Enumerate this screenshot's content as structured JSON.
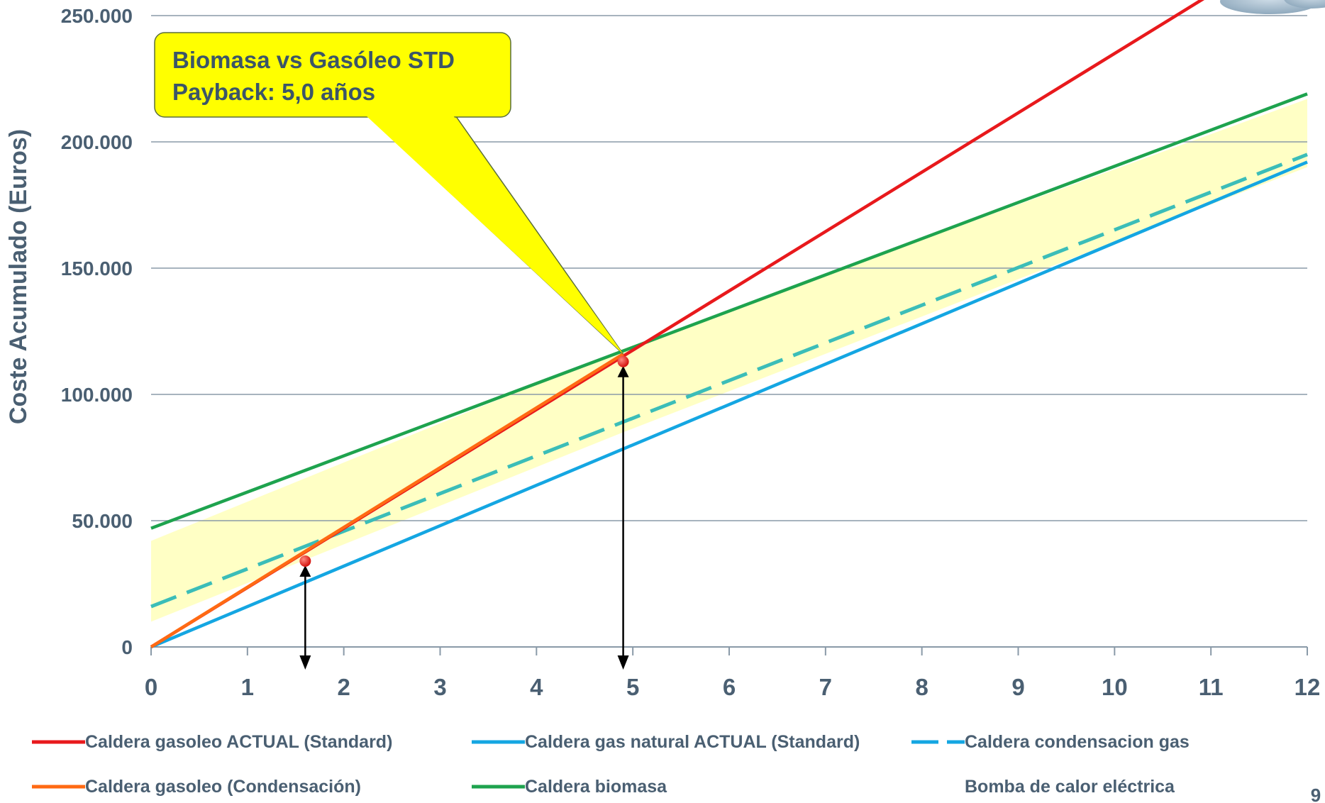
{
  "chart_data": {
    "type": "line",
    "ylabel": "Coste Acumulado (Euros)",
    "xlabel": "",
    "xlim": [
      0,
      12
    ],
    "ylim": [
      0,
      250000
    ],
    "x_ticks": [
      "0",
      "1",
      "2",
      "3",
      "4",
      "5",
      "6",
      "7",
      "8",
      "9",
      "10",
      "11",
      "12"
    ],
    "y_ticks": [
      {
        "value": 0,
        "label": "0"
      },
      {
        "value": 50000,
        "label": "50.000"
      },
      {
        "value": 100000,
        "label": "100.000"
      },
      {
        "value": 150000,
        "label": "150.000"
      },
      {
        "value": 200000,
        "label": "200.000"
      },
      {
        "value": 250000,
        "label": "250.000"
      }
    ],
    "grid": true,
    "legend_position": "bottom",
    "series": [
      {
        "name": "Caldera gasoleo ACTUAL (Standard)",
        "color": "#e8191c",
        "style": "solid",
        "x": [
          0,
          12
        ],
        "y": [
          0,
          282000
        ]
      },
      {
        "name": "Caldera gas natural ACTUAL (Standard)",
        "color": "#14a6e2",
        "style": "solid",
        "x": [
          0,
          12
        ],
        "y": [
          0,
          192000
        ]
      },
      {
        "name": "Caldera condensacion gas",
        "color": "#3bbdb8",
        "style": "dashed",
        "x": [
          0,
          12
        ],
        "y": [
          16000,
          195000
        ]
      },
      {
        "name": "Caldera gasoleo (Condensación)",
        "color": "#ff6a13",
        "style": "solid",
        "x": [
          0,
          4.9
        ],
        "y": [
          0,
          116000
        ]
      },
      {
        "name": "Caldera biomasa",
        "color": "#1ea34e",
        "style": "solid",
        "x": [
          0,
          12
        ],
        "y": [
          47000,
          219000
        ]
      },
      {
        "name": "Bomba de calor eléctrica",
        "color": "none",
        "style": "none",
        "x": [],
        "y": []
      }
    ],
    "band": {
      "color": "#ffff66",
      "opacity": 0.38,
      "upper": [
        [
          0,
          42000
        ],
        [
          4.9,
          118000
        ],
        [
          12,
          217000
        ]
      ],
      "lower": [
        [
          0,
          10000
        ],
        [
          4.9,
          85000
        ],
        [
          12,
          190000
        ]
      ]
    },
    "markers": [
      {
        "x": 1.6,
        "y": 34000,
        "color": "#e8191c"
      },
      {
        "x": 4.9,
        "y": 113000,
        "color": "#e8191c"
      }
    ],
    "arrows": [
      {
        "x": 1.6,
        "from_y": 34000,
        "to_y": 0
      },
      {
        "x": 4.9,
        "from_y": 113000,
        "to_y": 0
      }
    ],
    "annotation": {
      "lines": [
        "Biomasa vs Gasóleo STD",
        "Payback: 5,0 años"
      ],
      "point_x": 4.9,
      "point_y": 116000,
      "fill": "#ffff00"
    },
    "page_number": "9"
  }
}
